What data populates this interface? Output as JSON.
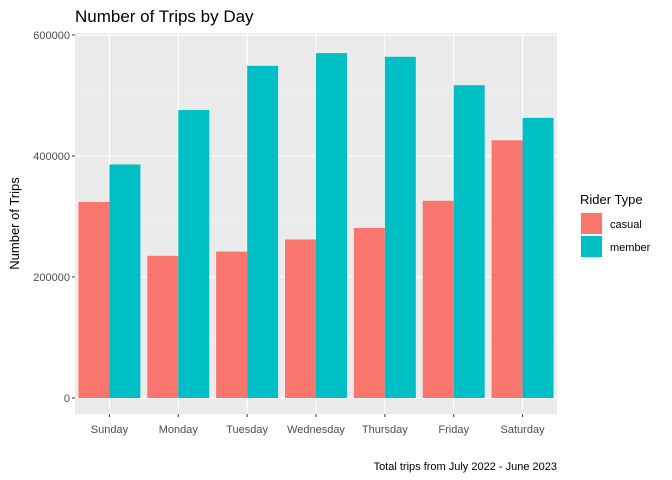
{
  "chart_data": {
    "type": "bar",
    "title": "Number of Trips by Day",
    "xlabel": "",
    "ylabel": "Number of Trips",
    "caption": "Total trips from July 2022 - June 2023",
    "categories": [
      "Sunday",
      "Monday",
      "Tuesday",
      "Wednesday",
      "Thursday",
      "Friday",
      "Saturday"
    ],
    "series": [
      {
        "name": "casual",
        "color": "#F8766D",
        "values": [
          324000,
          235000,
          242000,
          262000,
          281000,
          326000,
          426000
        ]
      },
      {
        "name": "member",
        "color": "#00BFC4",
        "values": [
          386000,
          476000,
          549000,
          570000,
          564000,
          517000,
          463000
        ]
      }
    ],
    "ylim": [
      0,
      600000
    ],
    "yticks": [
      0,
      200000,
      400000,
      600000
    ],
    "ytick_labels": [
      "0",
      "200000",
      "400000",
      "600000"
    ],
    "grid": true,
    "legend": {
      "title": "Rider Type",
      "position": "right"
    }
  }
}
